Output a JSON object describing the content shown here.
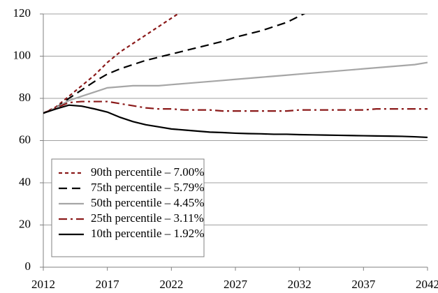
{
  "chart_data": {
    "type": "line",
    "x": [
      2012,
      2013,
      2014,
      2015,
      2016,
      2017,
      2018,
      2019,
      2020,
      2021,
      2022,
      2023,
      2024,
      2025,
      2026,
      2027,
      2028,
      2029,
      2030,
      2031,
      2032,
      2033,
      2034,
      2035,
      2036,
      2037,
      2038,
      2039,
      2040,
      2041,
      2042
    ],
    "xlim": [
      2012,
      2042
    ],
    "xticks": [
      2012,
      2017,
      2022,
      2027,
      2032,
      2037,
      2042
    ],
    "ylim": [
      0,
      120
    ],
    "yticks": [
      0,
      20,
      40,
      60,
      80,
      100,
      120
    ],
    "grid": true,
    "legend": "lower-left",
    "series": [
      {
        "name": "90th percentile – 7.00%",
        "color": "#8b1a1a",
        "dash": "dotted",
        "values": [
          73,
          76,
          81,
          86,
          91,
          97,
          102,
          106,
          110,
          114,
          118,
          122,
          null,
          null,
          null,
          null,
          null,
          null,
          null,
          null,
          null,
          null,
          null,
          null,
          null,
          null,
          null,
          null,
          null,
          null,
          null
        ]
      },
      {
        "name": "75th percentile – 5.79%",
        "color": "#000000",
        "dash": "dashed",
        "values": [
          73,
          75.5,
          80,
          84,
          88,
          91.5,
          94,
          96,
          98,
          99.5,
          101,
          102.5,
          104,
          105.5,
          107,
          109,
          110.5,
          112,
          114,
          116,
          119,
          122,
          null,
          null,
          null,
          null,
          null,
          null,
          null,
          null,
          null
        ]
      },
      {
        "name": "50th percentile – 4.45%",
        "color": "#a6a6a6",
        "dash": "solid",
        "values": [
          73,
          75.5,
          79,
          81,
          83,
          85,
          85.5,
          86,
          86,
          86,
          86.5,
          87,
          87.5,
          88,
          88.5,
          89,
          89.5,
          90,
          90.5,
          91,
          91.5,
          92,
          92.5,
          93,
          93.5,
          94,
          94.5,
          95,
          95.5,
          96,
          97
        ]
      },
      {
        "name": "25th percentile – 3.11%",
        "color": "#8b1a1a",
        "dash": "dashdot",
        "values": [
          73,
          75.5,
          78,
          78.5,
          78.5,
          78.5,
          77.5,
          76.5,
          75.5,
          75,
          75,
          74.5,
          74.5,
          74.5,
          74,
          74,
          74,
          74,
          74,
          74,
          74.5,
          74.5,
          74.5,
          74.5,
          74.5,
          74.5,
          75,
          75,
          75,
          75,
          75
        ]
      },
      {
        "name": "10th percentile – 1.92%",
        "color": "#000000",
        "dash": "solid",
        "values": [
          73,
          75,
          76.8,
          76.3,
          75,
          73.5,
          71,
          69,
          67.5,
          66.5,
          65.5,
          65,
          64.5,
          64,
          63.8,
          63.5,
          63.3,
          63.2,
          63,
          63,
          62.8,
          62.7,
          62.6,
          62.5,
          62.4,
          62.3,
          62.2,
          62.1,
          62,
          61.8,
          61.5
        ]
      }
    ]
  }
}
